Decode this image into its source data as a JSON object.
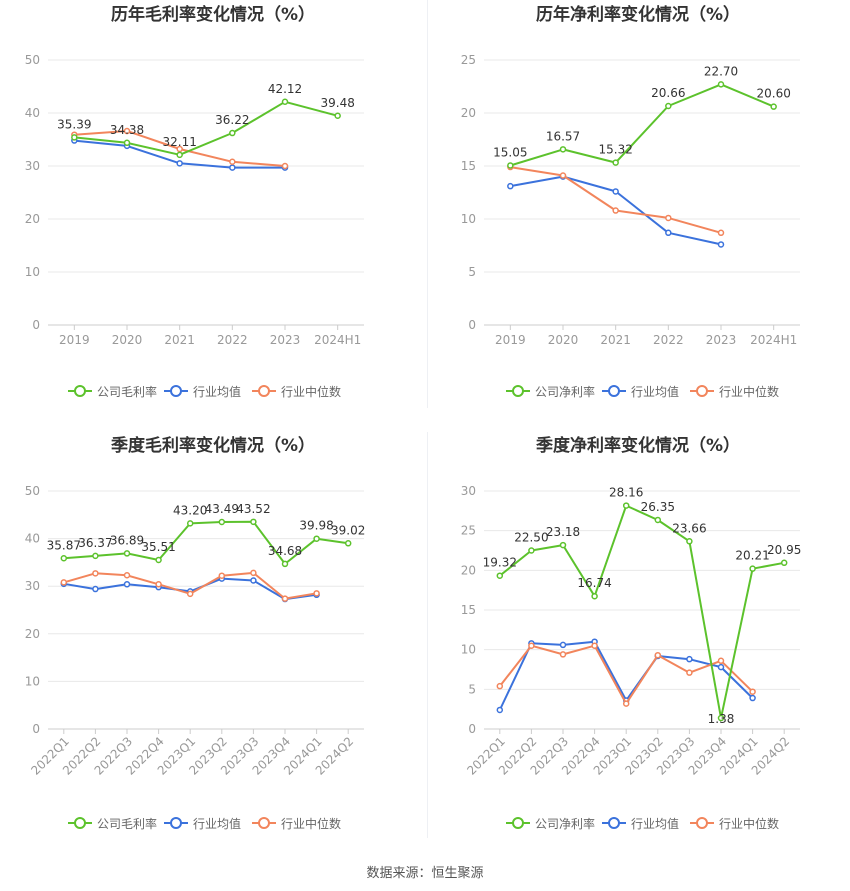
{
  "colors": {
    "company": "#5cc22c",
    "industry_avg": "#3b72dc",
    "industry_median": "#f2855c",
    "grid": "#e8e8e8",
    "axis": "#cccccc",
    "tick_text": "#999999",
    "label_text": "#333333",
    "title_text": "#333333"
  },
  "source_text": "数据来源：恒生聚源",
  "chart_data": [
    {
      "type": "line",
      "title": "历年毛利率变化情况（%）",
      "categories": [
        "2019",
        "2020",
        "2021",
        "2022",
        "2023",
        "2024H1"
      ],
      "ylim": [
        0,
        50
      ],
      "yticks": [
        0,
        10,
        20,
        30,
        40,
        50
      ],
      "series": [
        {
          "name": "公司毛利率",
          "key": "company",
          "values": [
            35.39,
            34.38,
            32.11,
            36.22,
            42.12,
            39.48
          ],
          "labels": [
            "35.39",
            "34.38",
            "32.11",
            "36.22",
            "42.12",
            "39.48"
          ]
        },
        {
          "name": "行业均值",
          "key": "industry_avg",
          "values": [
            34.8,
            33.8,
            30.5,
            29.7,
            29.7,
            null
          ]
        },
        {
          "name": "行业中位数",
          "key": "industry_median",
          "values": [
            35.9,
            36.6,
            33.2,
            30.8,
            30.0,
            null
          ]
        }
      ],
      "rotate_ticks": false
    },
    {
      "type": "line",
      "title": "历年净利率变化情况（%）",
      "categories": [
        "2019",
        "2020",
        "2021",
        "2022",
        "2023",
        "2024H1"
      ],
      "ylim": [
        0,
        25
      ],
      "yticks": [
        0,
        5,
        10,
        15,
        20,
        25
      ],
      "series": [
        {
          "name": "公司净利率",
          "key": "company",
          "values": [
            15.05,
            16.57,
            15.32,
            20.66,
            22.7,
            20.6
          ],
          "labels": [
            "15.05",
            "16.57",
            "15.32",
            "20.66",
            "22.70",
            "20.60"
          ]
        },
        {
          "name": "行业均值",
          "key": "industry_avg",
          "values": [
            13.1,
            14.0,
            12.6,
            8.7,
            7.6,
            null
          ]
        },
        {
          "name": "行业中位数",
          "key": "industry_median",
          "values": [
            14.9,
            14.1,
            10.8,
            10.1,
            8.7,
            null
          ]
        }
      ],
      "rotate_ticks": false
    },
    {
      "type": "line",
      "title": "季度毛利率变化情况（%）",
      "categories": [
        "2022Q1",
        "2022Q2",
        "2022Q3",
        "2022Q4",
        "2023Q1",
        "2023Q2",
        "2023Q3",
        "2023Q4",
        "2024Q1",
        "2024Q2"
      ],
      "ylim": [
        0,
        50
      ],
      "yticks": [
        0,
        10,
        20,
        30,
        40,
        50
      ],
      "series": [
        {
          "name": "公司毛利率",
          "key": "company",
          "values": [
            35.87,
            36.37,
            36.89,
            35.51,
            43.2,
            43.49,
            43.52,
            34.68,
            39.98,
            39.02
          ],
          "labels": [
            "35.87",
            "36.37",
            "36.89",
            "35.51",
            "43.20",
            "43.49",
            "43.52",
            "34.68",
            "39.98",
            "39.02"
          ]
        },
        {
          "name": "行业均值",
          "key": "industry_avg",
          "values": [
            30.5,
            29.4,
            30.4,
            29.8,
            28.9,
            31.6,
            31.2,
            27.3,
            28.2,
            null
          ]
        },
        {
          "name": "行业中位数",
          "key": "industry_median",
          "values": [
            30.8,
            32.7,
            32.3,
            30.4,
            28.4,
            32.2,
            32.8,
            27.4,
            28.5,
            null
          ]
        }
      ],
      "rotate_ticks": true
    },
    {
      "type": "line",
      "title": "季度净利率变化情况（%）",
      "categories": [
        "2022Q1",
        "2022Q2",
        "2022Q3",
        "2022Q4",
        "2023Q1",
        "2023Q2",
        "2023Q3",
        "2023Q4",
        "2024Q1",
        "2024Q2"
      ],
      "ylim": [
        0,
        30
      ],
      "yticks": [
        0,
        5,
        10,
        15,
        20,
        25,
        30
      ],
      "series": [
        {
          "name": "公司净利率",
          "key": "company",
          "values": [
            19.32,
            22.5,
            23.18,
            16.74,
            28.16,
            26.35,
            23.66,
            1.38,
            20.21,
            20.95
          ],
          "labels": [
            "19.32",
            "22.50",
            "23.18",
            "16.74",
            "28.16",
            "26.35",
            "23.66",
            "1.38",
            "20.21",
            "20.95"
          ]
        },
        {
          "name": "行业均值",
          "key": "industry_avg",
          "values": [
            2.4,
            10.8,
            10.6,
            11.0,
            3.6,
            9.2,
            8.8,
            7.8,
            3.9,
            null
          ]
        },
        {
          "name": "行业中位数",
          "key": "industry_median",
          "values": [
            5.4,
            10.5,
            9.4,
            10.5,
            3.2,
            9.3,
            7.1,
            8.6,
            4.7,
            null
          ]
        }
      ],
      "rotate_ticks": true
    }
  ]
}
